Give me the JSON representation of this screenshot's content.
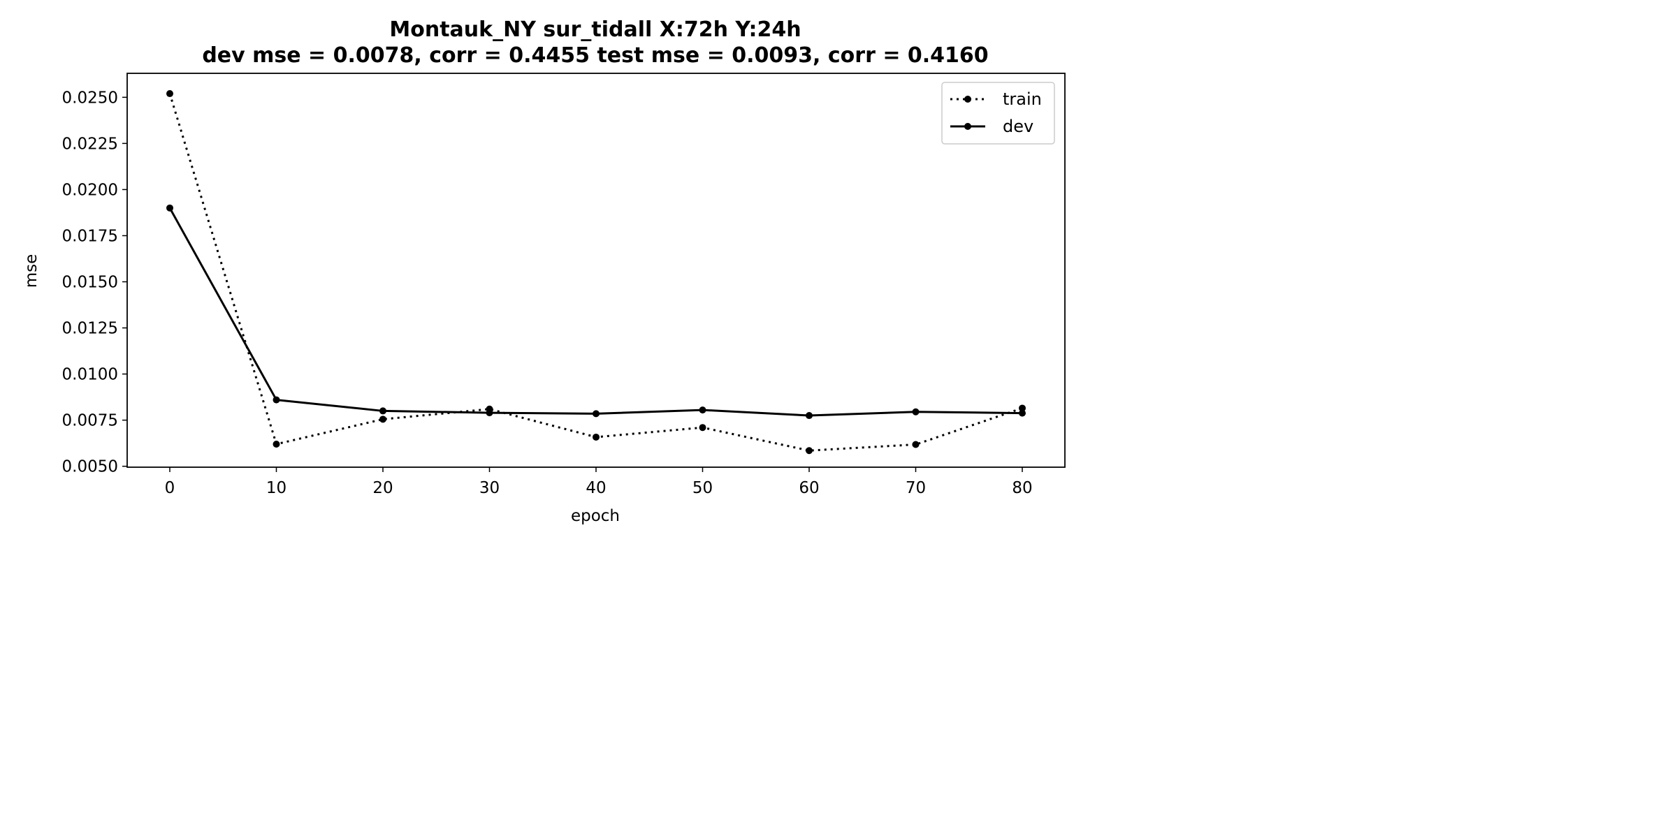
{
  "chart_data": {
    "type": "line",
    "title": "Montauk_NY   sur_tidall   X:72h   Y:24h",
    "subtitle": "dev mse = 0.0078, corr = 0.4455   test mse = 0.0093, corr = 0.4160",
    "xlabel": "epoch",
    "ylabel": "mse",
    "xlim": [
      -4,
      84
    ],
    "ylim": [
      0.00495,
      0.0263
    ],
    "xticks": [
      0,
      10,
      20,
      30,
      40,
      50,
      60,
      70,
      80
    ],
    "yticks": [
      0.005,
      0.0075,
      0.01,
      0.0125,
      0.015,
      0.0175,
      0.02,
      0.0225,
      0.025
    ],
    "ytick_labels": [
      "0.0050",
      "0.0075",
      "0.0100",
      "0.0125",
      "0.0150",
      "0.0175",
      "0.0200",
      "0.0225",
      "0.0250"
    ],
    "x": [
      0,
      10,
      20,
      30,
      40,
      50,
      60,
      70,
      80
    ],
    "series": [
      {
        "name": "train",
        "style": "dotted",
        "color": "#000000",
        "values": [
          0.0252,
          0.0062,
          0.00755,
          0.0081,
          0.00658,
          0.0071,
          0.00585,
          0.00618,
          0.00815
        ]
      },
      {
        "name": "dev",
        "style": "solid",
        "color": "#000000",
        "values": [
          0.019,
          0.0086,
          0.008,
          0.0079,
          0.00785,
          0.00805,
          0.00775,
          0.00795,
          0.00788
        ]
      }
    ],
    "grid": false,
    "legend_position": "top-right"
  }
}
